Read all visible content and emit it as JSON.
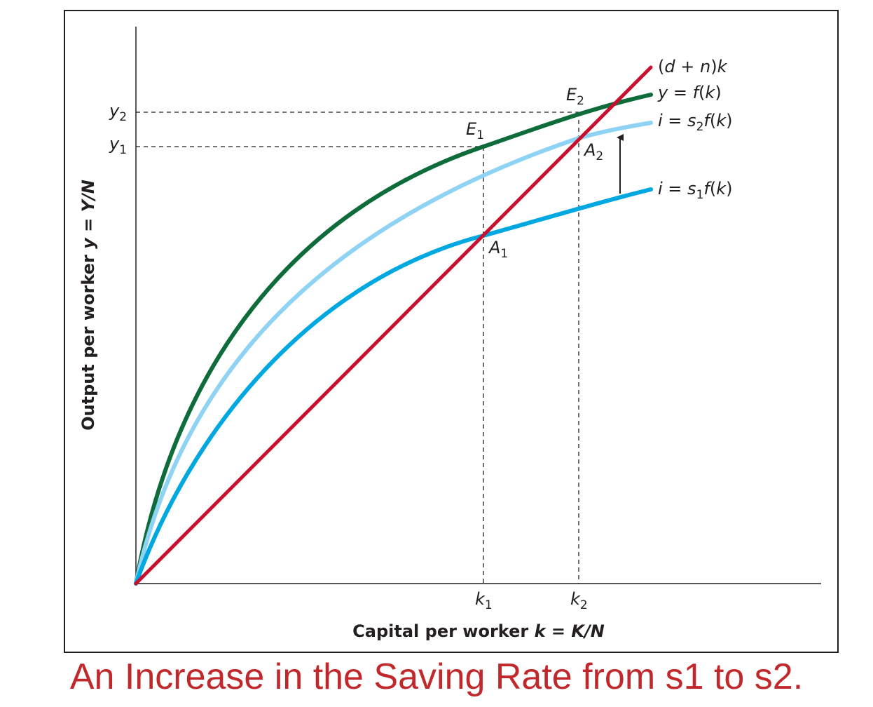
{
  "figure": {
    "axis": {
      "x_title_prefix": "Capital per worker ",
      "x_title_var": "k",
      "x_title_eq": " = ",
      "x_title_expr": "K/N",
      "y_title_prefix": "Output per worker ",
      "y_title_var": "y",
      "y_title_eq": " = ",
      "y_title_expr": "Y/N"
    },
    "ticks": {
      "k1": {
        "base": "k",
        "sub": "1"
      },
      "k2": {
        "base": "k",
        "sub": "2"
      },
      "y1": {
        "base": "y",
        "sub": "1"
      },
      "y2": {
        "base": "y",
        "sub": "2"
      }
    },
    "points": {
      "E1": {
        "base": "E",
        "sub": "1"
      },
      "E2": {
        "base": "E",
        "sub": "2"
      },
      "A1": {
        "base": "A",
        "sub": "1"
      },
      "A2": {
        "base": "A",
        "sub": "2"
      }
    },
    "curves": {
      "depreciation": {
        "a": "(",
        "b": "d",
        "c": " + ",
        "d": "n",
        "e": ")",
        "f": "k"
      },
      "production": {
        "a": "y",
        "b": " = ",
        "c": "f",
        "d": "(",
        "e": "k",
        "f": ")"
      },
      "invest_s2": {
        "a": "i",
        "b": " = ",
        "c": "s",
        "sub": "2",
        "d": "f",
        "e": "(",
        "f": "k",
        "g": ")"
      },
      "invest_s1": {
        "a": "i",
        "b": " = ",
        "c": "s",
        "sub": "1",
        "d": "f",
        "e": "(",
        "f": "k",
        "g": ")"
      }
    },
    "colors": {
      "production": "#0e6b3a",
      "invest_s2": "#8fd3f4",
      "invest_s1": "#00a8e1",
      "depreciation": "#c8102e",
      "axis": "#231f20",
      "caption": "#c0282c"
    }
  },
  "caption": "An Increase in the Saving Rate from s1 to s2."
}
